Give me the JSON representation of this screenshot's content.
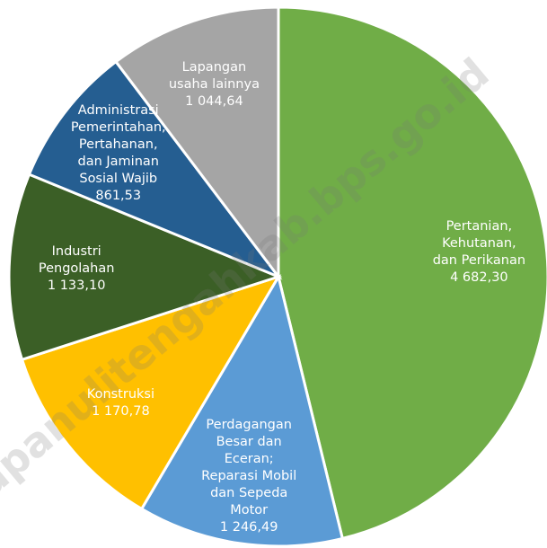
{
  "chart_data": {
    "type": "pie",
    "categories": [
      "Pertanian,\nKehutanan,\ndan Perikanan",
      "Perdagangan\nBesar dan\nEceran;\nReparasi Mobil\ndan Sepeda\nMotor",
      "Konstruksi",
      "Industri\nPengolahan",
      "Administrasi\nPemerintahan,\nPertahanan,\ndan Jaminan\nSosial Wajib",
      "Lapangan\nusaha lainnya"
    ],
    "values": [
      4682.3,
      1246.49,
      1170.78,
      1133.1,
      861.53,
      1044.64
    ],
    "value_labels": [
      "4 682,30",
      "1 246,49",
      "1 170,78",
      "1 133,10",
      "861,53",
      "1 044,64"
    ],
    "colors": [
      "#70ad47",
      "#5b9bd5",
      "#ffc000",
      "#3b5f26",
      "#255e91",
      "#a5a5a5"
    ],
    "watermark": "tapanulitengahkab.bps.go.id"
  }
}
